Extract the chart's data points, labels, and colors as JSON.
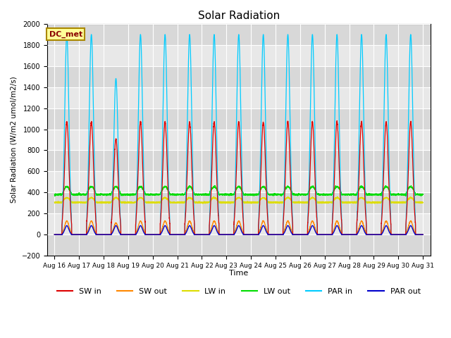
{
  "title": "Solar Radiation",
  "ylabel": "Solar Radiation (W/m2 umol/m2/s)",
  "xlabel": "Time",
  "ylim": [
    -200,
    2000
  ],
  "yticks": [
    -200,
    0,
    200,
    400,
    600,
    800,
    1000,
    1200,
    1400,
    1600,
    1800,
    2000
  ],
  "legend_label": "DC_met",
  "series": [
    "SW in",
    "SW out",
    "LW in",
    "LW out",
    "PAR in",
    "PAR out"
  ],
  "colors": [
    "#dd0000",
    "#ff8800",
    "#dddd00",
    "#00dd00",
    "#00ccff",
    "#0000cc"
  ],
  "background_color": "#ffffff",
  "plot_bg_color": "#e0e0e0",
  "grid_color": "#ffffff",
  "legend_box_color": "#ffff99",
  "legend_box_edge": "#aa8800",
  "band_colors": [
    "#d8d8d8",
    "#e8e8e8"
  ]
}
